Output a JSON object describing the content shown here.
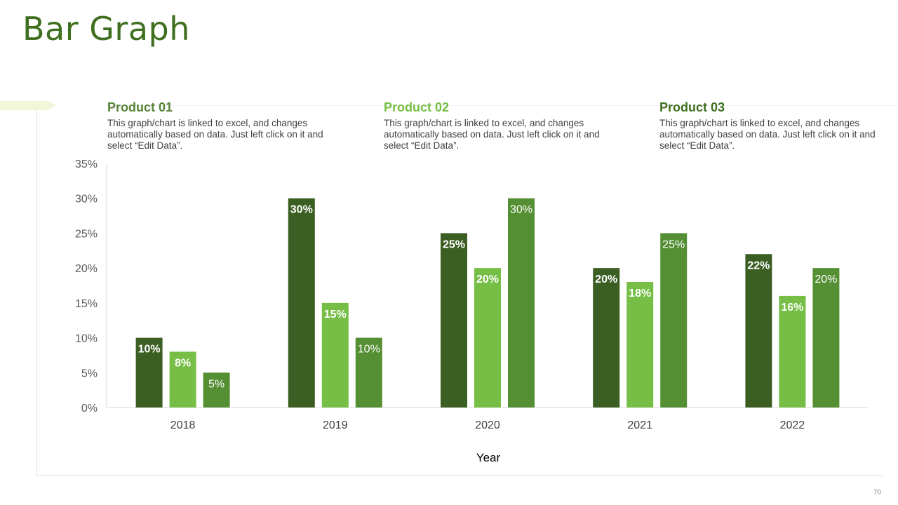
{
  "slide": {
    "title": "Bar Graph",
    "page_number": "70"
  },
  "products": [
    {
      "title": "Product 01",
      "description": "This graph/chart is linked to excel, and changes automatically based on data. Just left click on it and select “Edit Data”.",
      "color": "#548235"
    },
    {
      "title": "Product 02",
      "description": "This graph/chart is linked to excel, and changes automatically based on data. Just left click on it and select “Edit Data”.",
      "color": "#76be45"
    },
    {
      "title": "Product 03",
      "description": "This graph/chart is linked to excel, and changes automatically based on data. Just left click on it and select “Edit Data”.",
      "color": "#3f6f1f"
    }
  ],
  "chart_data": {
    "type": "bar",
    "title": "",
    "xlabel": "Year",
    "ylabel": "",
    "ylim": [
      0,
      35
    ],
    "yticks": [
      0,
      5,
      10,
      15,
      20,
      25,
      30,
      35
    ],
    "ytick_labels": [
      "0%",
      "5%",
      "10%",
      "15%",
      "20%",
      "25%",
      "30%",
      "35%"
    ],
    "grid": false,
    "categories": [
      "2018",
      "2019",
      "2020",
      "2021",
      "2022"
    ],
    "series": [
      {
        "name": "Product 01",
        "values": [
          10,
          30,
          25,
          20,
          22
        ],
        "labels": [
          "10%",
          "30%",
          "25%",
          "20%",
          "22%"
        ],
        "color": "#3b5e22",
        "label_bold": true
      },
      {
        "name": "Product 02",
        "values": [
          8,
          15,
          20,
          18,
          16
        ],
        "labels": [
          "8%",
          "15%",
          "20%",
          "18%",
          "16%"
        ],
        "color": "#76be45",
        "label_bold": true
      },
      {
        "name": "Product 03",
        "values": [
          5,
          10,
          30,
          25,
          20
        ],
        "labels": [
          "5%",
          "10%",
          "30%",
          "25%",
          "20%"
        ],
        "color": "#548f33",
        "label_bold": false
      }
    ]
  }
}
